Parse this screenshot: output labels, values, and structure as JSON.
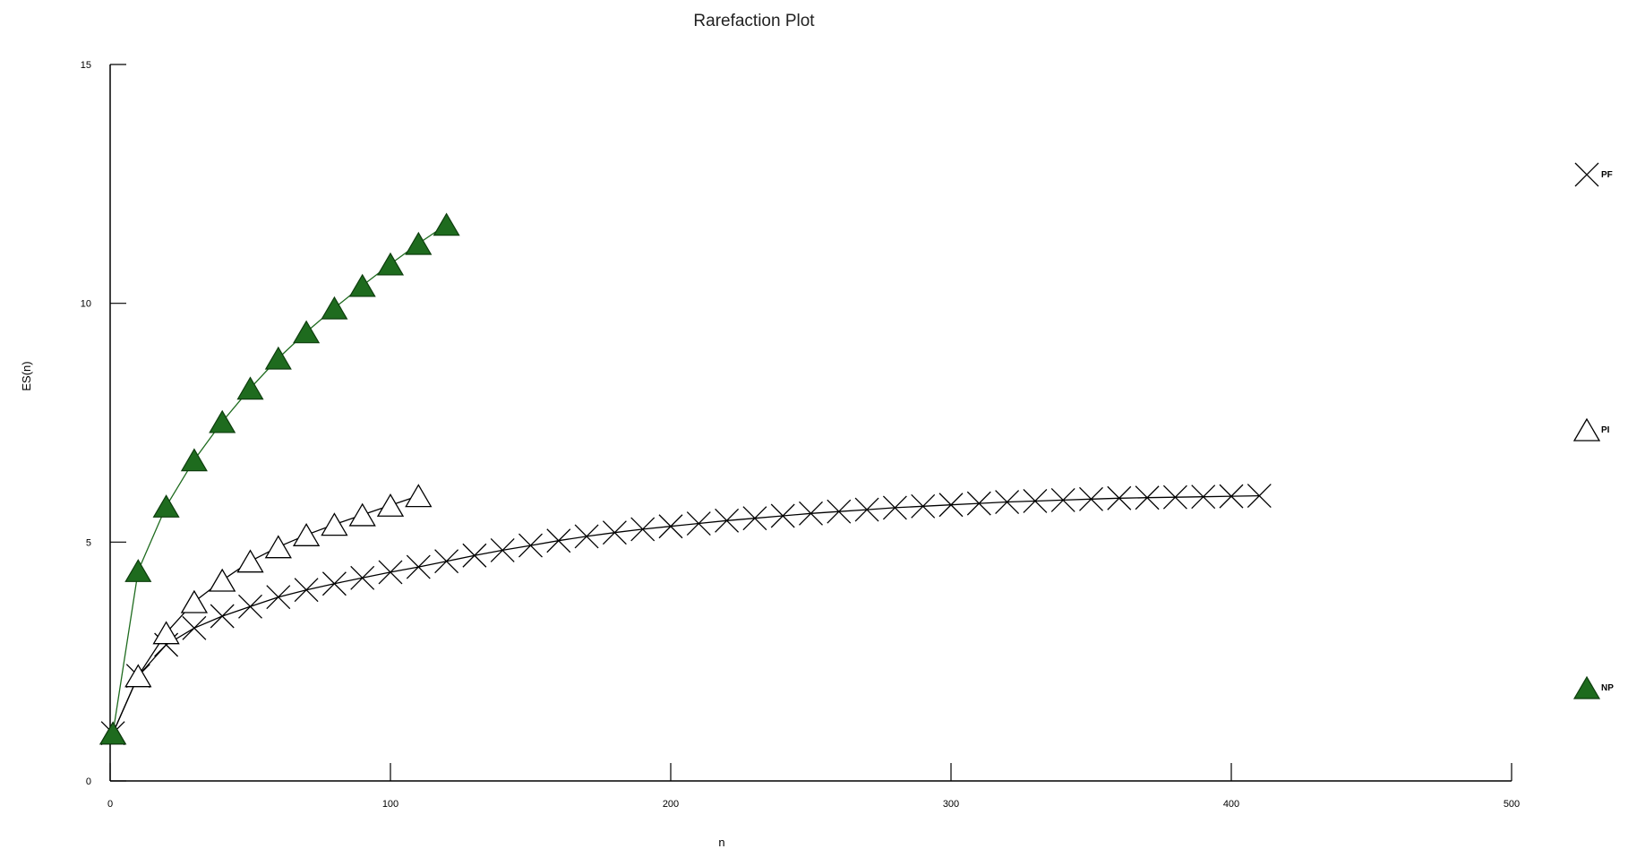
{
  "chart_data": {
    "type": "line",
    "title": "Rarefaction Plot",
    "xlabel": "n",
    "ylabel": "ES(n)",
    "xlim": [
      0,
      500
    ],
    "ylim": [
      0,
      15
    ],
    "xticks": [
      0,
      100,
      200,
      300,
      400,
      500
    ],
    "yticks": [
      0,
      5,
      10,
      15
    ],
    "grid": false,
    "legend_position": "right",
    "series": [
      {
        "name": "PF",
        "marker": "x",
        "color": "#000000",
        "x": [
          1,
          10,
          20,
          30,
          40,
          50,
          60,
          70,
          80,
          90,
          100,
          110,
          120,
          130,
          140,
          150,
          160,
          170,
          180,
          190,
          200,
          210,
          220,
          230,
          240,
          250,
          260,
          270,
          280,
          290,
          300,
          310,
          320,
          330,
          340,
          350,
          360,
          370,
          380,
          390,
          400,
          410
        ],
        "y": [
          1.0,
          2.2,
          2.85,
          3.2,
          3.45,
          3.65,
          3.85,
          4.0,
          4.13,
          4.25,
          4.37,
          4.48,
          4.6,
          4.72,
          4.83,
          4.93,
          5.03,
          5.12,
          5.2,
          5.27,
          5.33,
          5.39,
          5.45,
          5.5,
          5.55,
          5.6,
          5.64,
          5.68,
          5.72,
          5.75,
          5.78,
          5.81,
          5.84,
          5.86,
          5.88,
          5.9,
          5.92,
          5.93,
          5.94,
          5.95,
          5.96,
          5.97
        ]
      },
      {
        "name": "PI",
        "marker": "triangle-open",
        "color": "#000000",
        "x": [
          1,
          10,
          20,
          30,
          40,
          50,
          60,
          70,
          80,
          90,
          100,
          110
        ],
        "y": [
          1.0,
          2.2,
          3.1,
          3.75,
          4.2,
          4.6,
          4.9,
          5.15,
          5.37,
          5.57,
          5.77,
          5.97
        ]
      },
      {
        "name": "NP",
        "marker": "triangle-filled",
        "color": "#1e6b1e",
        "x": [
          1,
          10,
          20,
          30,
          40,
          50,
          60,
          70,
          80,
          90,
          100,
          110,
          120
        ],
        "y": [
          1.0,
          4.4,
          5.75,
          6.72,
          7.52,
          8.22,
          8.85,
          9.4,
          9.9,
          10.37,
          10.82,
          11.25,
          11.65
        ]
      }
    ]
  }
}
